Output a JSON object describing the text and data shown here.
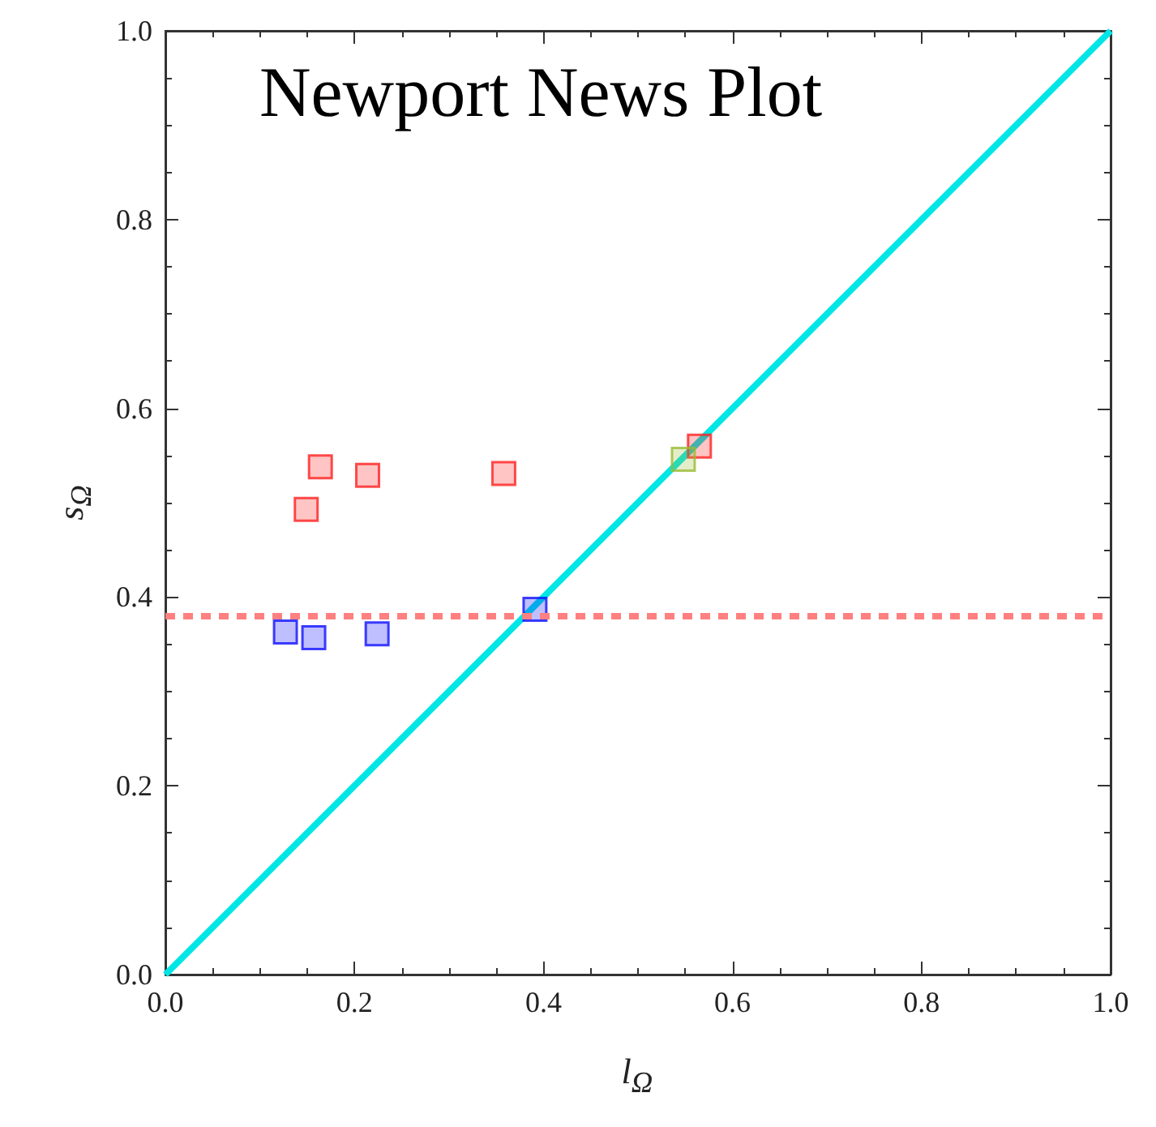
{
  "chart_data": {
    "type": "scatter",
    "title": "Newport News Plot",
    "xlabel": "l$_{Ω}$",
    "ylabel": "s$_{Ω}$",
    "xlim": [
      0,
      1
    ],
    "ylim": [
      0,
      1
    ],
    "xticks": [
      {
        "value": 0,
        "label": "0.0"
      },
      {
        "value": 0.2,
        "label": "0.2"
      },
      {
        "value": 0.4,
        "label": "0.4"
      },
      {
        "value": 0.6,
        "label": "0.6"
      },
      {
        "value": 0.8,
        "label": "0.8"
      },
      {
        "value": 1,
        "label": "1.0"
      }
    ],
    "yticks": [
      {
        "value": 0,
        "label": "0.0"
      },
      {
        "value": 0.2,
        "label": "0.2"
      },
      {
        "value": 0.4,
        "label": "0.4"
      },
      {
        "value": 0.6,
        "label": "0.6"
      },
      {
        "value": 0.8,
        "label": "0.8"
      },
      {
        "value": 1,
        "label": "1.0"
      }
    ],
    "marker": "square",
    "grid": false,
    "series": [
      {
        "type": "line",
        "color": "#00e5e5",
        "x": [
          0,
          1
        ],
        "values": [
          0,
          1
        ],
        "marker": "none"
      },
      {
        "color": "#ff2020",
        "x": [
          0.149,
          0.164,
          0.214,
          0.358,
          0.565
        ],
        "values": [
          0.493,
          0.538,
          0.529,
          0.531,
          0.56
        ]
      },
      {
        "color": "#99bb33",
        "x": [
          0.548
        ],
        "values": [
          0.546
        ]
      },
      {
        "color": "#1010ff",
        "x": [
          0.127,
          0.157,
          0.224,
          0.391
        ],
        "values": [
          0.363,
          0.357,
          0.361,
          0.387
        ]
      }
    ],
    "ref_lines": [
      {
        "axis": "y",
        "value": 0.38,
        "color": "#ff8080",
        "line_style": "dashed"
      }
    ]
  }
}
